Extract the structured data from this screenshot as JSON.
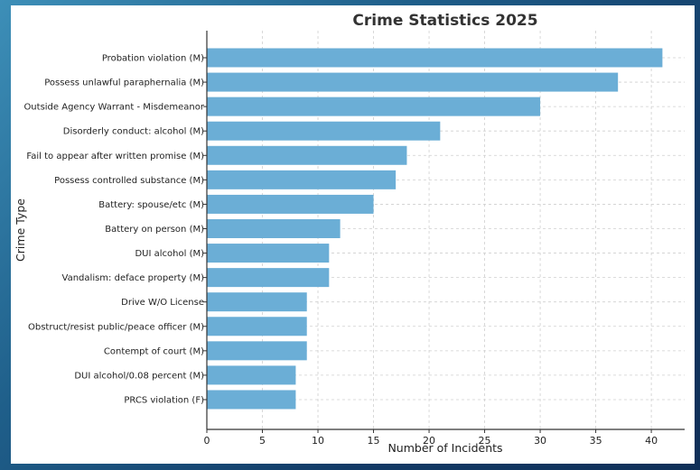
{
  "colors": {
    "bar": "#6baed6",
    "grid": "#cfcfcf",
    "axis": "#333333"
  },
  "chart_data": {
    "type": "bar",
    "orientation": "horizontal",
    "title": "Crime Statistics 2025",
    "xlabel": "Number of Incidents",
    "ylabel": "Crime Type",
    "xlim": [
      0,
      43
    ],
    "xticks": [
      0,
      5,
      10,
      15,
      20,
      25,
      30,
      35,
      40
    ],
    "grid": true,
    "categories": [
      "Probation violation (M)",
      "Possess unlawful paraphernalia (M)",
      "Outside Agency Warrant - Misdemeanor",
      "Disorderly conduct: alcohol (M)",
      "Fail to appear after written promise (M)",
      "Possess controlled substance (M)",
      "Battery: spouse/etc (M)",
      "Battery on person (M)",
      "DUI alcohol (M)",
      "Vandalism: deface property (M)",
      "Drive W/O License",
      "Obstruct/resist public/peace officer (M)",
      "Contempt of court (M)",
      "DUI alcohol/0.08 percent (M)",
      "PRCS violation (F)"
    ],
    "values": [
      41,
      37,
      30,
      21,
      18,
      17,
      15,
      12,
      11,
      11,
      9,
      9,
      9,
      8,
      8
    ]
  }
}
